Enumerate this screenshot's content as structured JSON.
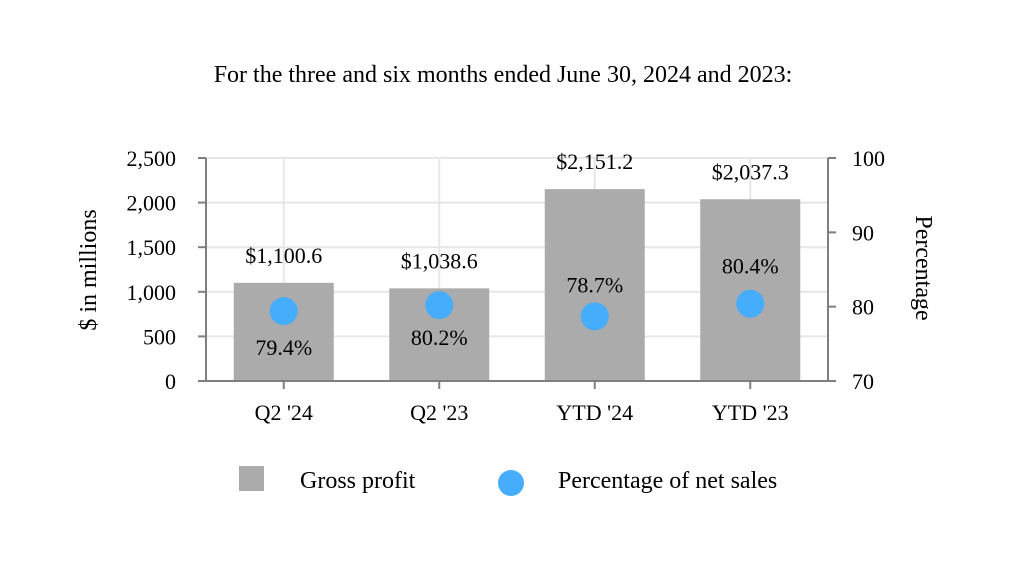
{
  "chart_data": {
    "type": "bar",
    "title": "For the three and six months ended June 30, 2024 and 2023:",
    "categories": [
      "Q2 '24",
      "Q2 '23",
      "YTD '24",
      "YTD '23"
    ],
    "series": [
      {
        "name": "Gross profit",
        "type": "bar",
        "axis": "left",
        "values": [
          1100.6,
          1038.6,
          2151.2,
          2037.3
        ],
        "labels": [
          "$1,100.6",
          "$1,038.6",
          "$2,151.2",
          "$2,037.3"
        ],
        "color": "#ababab"
      },
      {
        "name": "Percentage of net sales",
        "type": "scatter",
        "axis": "right",
        "values": [
          79.4,
          80.2,
          78.7,
          80.4
        ],
        "labels": [
          "79.4%",
          "80.2%",
          "78.7%",
          "80.4%"
        ],
        "color": "#45adfb"
      }
    ],
    "ylabel": "$ in millions",
    "ylim": [
      0,
      2500
    ],
    "yticks": [
      0,
      500,
      1000,
      1500,
      2000,
      2500
    ],
    "ytick_labels": [
      "0",
      "500",
      "1,000",
      "1,500",
      "2,000",
      "2,500"
    ],
    "y2label": "Percentage",
    "y2lim": [
      70,
      100
    ],
    "y2ticks": [
      70,
      80,
      90,
      100
    ],
    "y2tick_labels": [
      "70",
      "80",
      "90",
      "100"
    ],
    "grid": true,
    "legend_position": "bottom"
  }
}
